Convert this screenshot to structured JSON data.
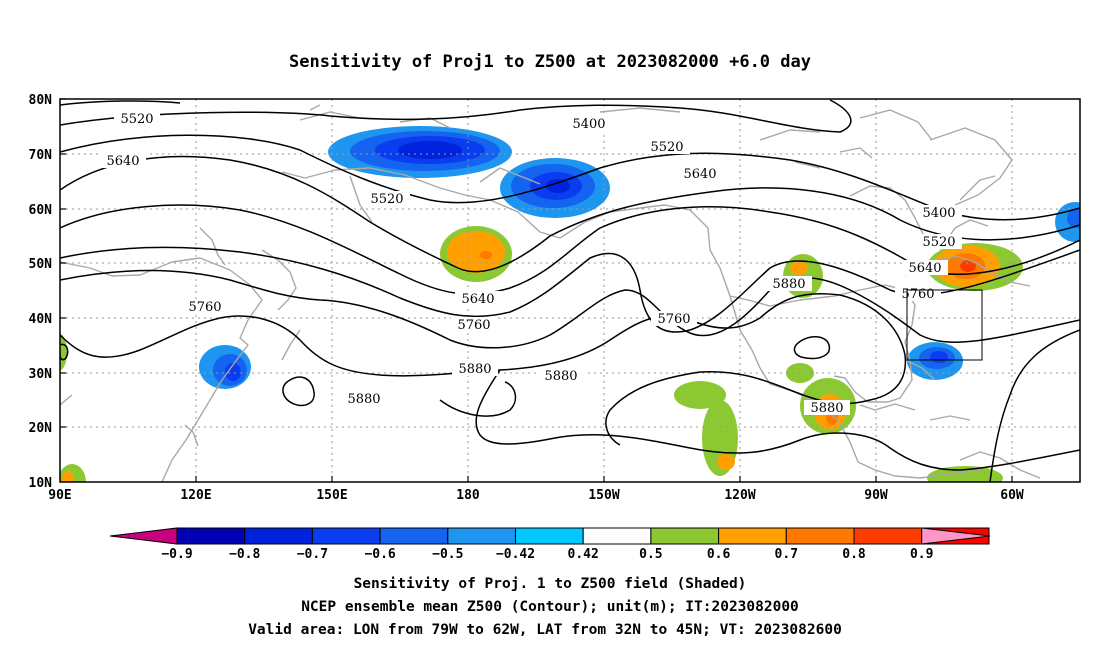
{
  "title": "Sensitivity of Proj1 to Z500 at 2023082000 +6.0 day",
  "lat_ticks": [
    "80N",
    "70N",
    "60N",
    "50N",
    "40N",
    "30N",
    "20N",
    "10N"
  ],
  "lon_ticks": [
    "90E",
    "120E",
    "150E",
    "180",
    "150W",
    "120W",
    "90W",
    "60W"
  ],
  "contour_labels": [
    "5520",
    "5400",
    "5520",
    "5640",
    "5640",
    "5520",
    "5400",
    "5520",
    "5640",
    "5760",
    "5880",
    "5640",
    "5760",
    "5760",
    "5880",
    "5880",
    "5760",
    "5880",
    "5880"
  ],
  "colorbar": {
    "labels": [
      "−0.9",
      "−0.8",
      "−0.7",
      "−0.6",
      "−0.5",
      "−0.42",
      "0.42",
      "0.5",
      "0.6",
      "0.7",
      "0.8",
      "0.9"
    ],
    "colors": [
      "#c8007f",
      "#0000b4",
      "#0022dc",
      "#0a3cf0",
      "#1464f0",
      "#1e96f0",
      "#00c8ff",
      "#ffffff",
      "#8cc832",
      "#ffa000",
      "#ff7800",
      "#ff3c00",
      "#ff0000",
      "#ff96c8"
    ]
  },
  "footer": [
    "Sensitivity of Proj. 1 to Z500 field (Shaded)",
    "NCEP ensemble mean Z500 (Contour); unit(m); IT:2023082000",
    "Valid area: LON from 79W to 62W, LAT from 32N to 45N; VT: 2023082600"
  ]
}
